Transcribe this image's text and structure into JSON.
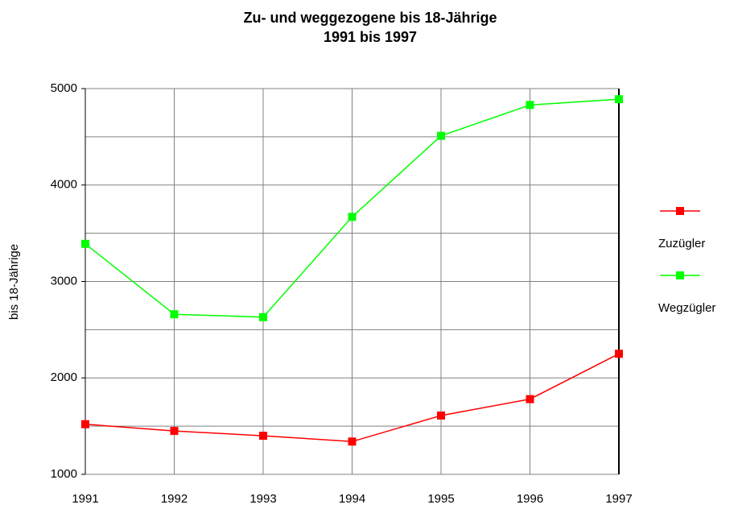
{
  "chart_data": {
    "type": "line",
    "title": "Zu- und weggezogene bis 18-Jährige",
    "subtitle": "1991 bis 1997",
    "y_label": "bis 18-Jährige",
    "categories": [
      "1991",
      "1992",
      "1993",
      "1994",
      "1995",
      "1996",
      "1997"
    ],
    "series": [
      {
        "name": "Zuzügler",
        "color": "#ff0000",
        "values": [
          1520,
          1450,
          1400,
          1340,
          1610,
          1780,
          2250
        ]
      },
      {
        "name": "Wegzügler",
        "color": "#00ff00",
        "values": [
          3390,
          2660,
          2630,
          3670,
          4510,
          4830,
          4890
        ]
      }
    ],
    "ylim": [
      1000,
      5000
    ],
    "yticks": [
      1000,
      2000,
      3000,
      4000,
      5000
    ],
    "minor_yticks": [
      1500,
      2500,
      3500,
      4500
    ],
    "grid": true,
    "legend": "right"
  }
}
